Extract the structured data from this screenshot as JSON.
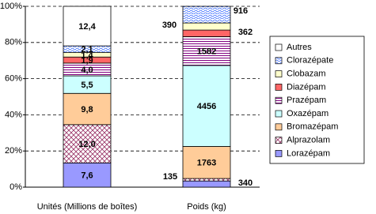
{
  "chart_data": {
    "type": "bar",
    "stacked": "percent",
    "categories": [
      "Unités (Millions de boîtes)",
      "Poids (kg)"
    ],
    "ylim": [
      0,
      100
    ],
    "yticks": [
      {
        "value": 0,
        "label": "0%"
      },
      {
        "value": 20,
        "label": "20%"
      },
      {
        "value": 40,
        "label": "40%"
      },
      {
        "value": 60,
        "label": "60%"
      },
      {
        "value": 80,
        "label": "80%"
      },
      {
        "value": 100,
        "label": "100%"
      }
    ],
    "grid": true,
    "legend": "right",
    "series": [
      {
        "name": "Lorazépam",
        "color": "#9999ff",
        "values": [
          7.6,
          340
        ],
        "value_labels": [
          "7,6",
          null
        ]
      },
      {
        "name": "Alprazolam",
        "color": "#993366",
        "pattern": "hatch",
        "values": [
          12.0,
          135
        ],
        "value_labels": [
          "12,0",
          null
        ]
      },
      {
        "name": "Bromazépam",
        "color": "#ffcc99",
        "values": [
          9.8,
          1763
        ],
        "value_labels": [
          "9,8",
          null
        ]
      },
      {
        "name": "Oxazépam",
        "color": "#ccffff",
        "values": [
          5.5,
          4456
        ],
        "value_labels": [
          "5,5",
          null
        ]
      },
      {
        "name": "Prazépam",
        "color": "#800080",
        "pattern": "stripes",
        "values": [
          4.0,
          1582
        ],
        "value_labels": [
          "4,0",
          null
        ]
      },
      {
        "name": "Diazépam",
        "color": "#ff6666",
        "values": [
          1.9,
          362
        ],
        "value_labels": [
          "1,9",
          null
        ]
      },
      {
        "name": "Clobazam",
        "color": "#ffffcc",
        "values": [
          1.4,
          390
        ],
        "value_labels": [
          "1,4",
          null
        ]
      },
      {
        "name": "Clorazépate",
        "color": "#3366ff",
        "pattern": "waves",
        "values": [
          2.1,
          916
        ],
        "value_labels": [
          "2,1",
          null
        ]
      },
      {
        "name": "Autres",
        "color": "#ffffff",
        "values": [
          12.4,
          null
        ],
        "value_labels": [
          "12,4",
          null
        ]
      }
    ]
  }
}
